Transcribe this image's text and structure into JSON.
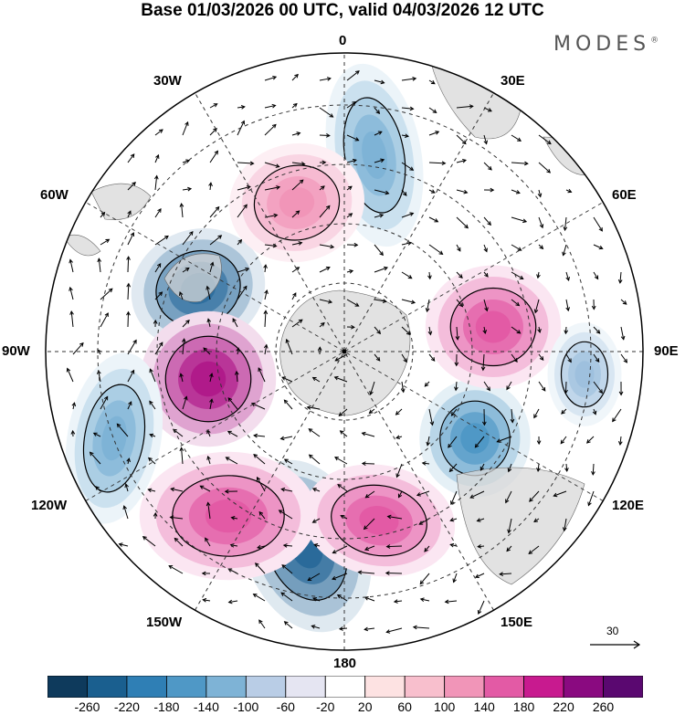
{
  "title": "Base 01/03/2026 00 UTC, valid 04/03/2026 12 UTC",
  "brand": "MODES",
  "brand_mark": "®",
  "longitude_labels": {
    "0": "0",
    "30E": "30E",
    "60E": "60E",
    "90E": "90E",
    "120E": "120E",
    "150E": "150E",
    "180": "180",
    "150W": "150W",
    "120W": "120W",
    "90W": "90W",
    "60W": "60W",
    "30W": "30W"
  },
  "reference_vector": {
    "label": "30"
  },
  "colorbar": {
    "ticks": [
      "-260",
      "-220",
      "-180",
      "-140",
      "-100",
      "-60",
      "-20",
      "20",
      "60",
      "100",
      "140",
      "180",
      "220",
      "260"
    ],
    "colors": [
      "#0e3a5c",
      "#1a5f8f",
      "#2f7fb5",
      "#4f98c6",
      "#7eb3d6",
      "#b9cde6",
      "#e5e5f2",
      "#ffffff",
      "#fde2e2",
      "#f8bfcd",
      "#f195b8",
      "#e35aa5",
      "#c81a8f",
      "#8a0a80",
      "#5a0870"
    ]
  },
  "anomalies": [
    {
      "name": "low-west-antarctic-peninsula",
      "value": -220,
      "color": "#2f6f9f"
    },
    {
      "name": "high-90w",
      "value": 220,
      "color": "#b01a8a"
    },
    {
      "name": "low-180",
      "value": -220,
      "color": "#2a6a9a"
    },
    {
      "name": "high-120w",
      "value": 140,
      "color": "#e35aa5"
    },
    {
      "name": "high-150e",
      "value": 140,
      "color": "#e35aa5"
    },
    {
      "name": "low-120e",
      "value": -140,
      "color": "#4f98c6"
    },
    {
      "name": "high-75e",
      "value": 140,
      "color": "#e35aa5"
    },
    {
      "name": "low-10e",
      "value": -100,
      "color": "#7eb3d6"
    },
    {
      "name": "high-40w",
      "value": 100,
      "color": "#f195b8"
    },
    {
      "name": "low-130w",
      "value": -100,
      "color": "#7eb3d6"
    },
    {
      "name": "low-100e",
      "value": -60,
      "color": "#9ec0de"
    }
  ]
}
